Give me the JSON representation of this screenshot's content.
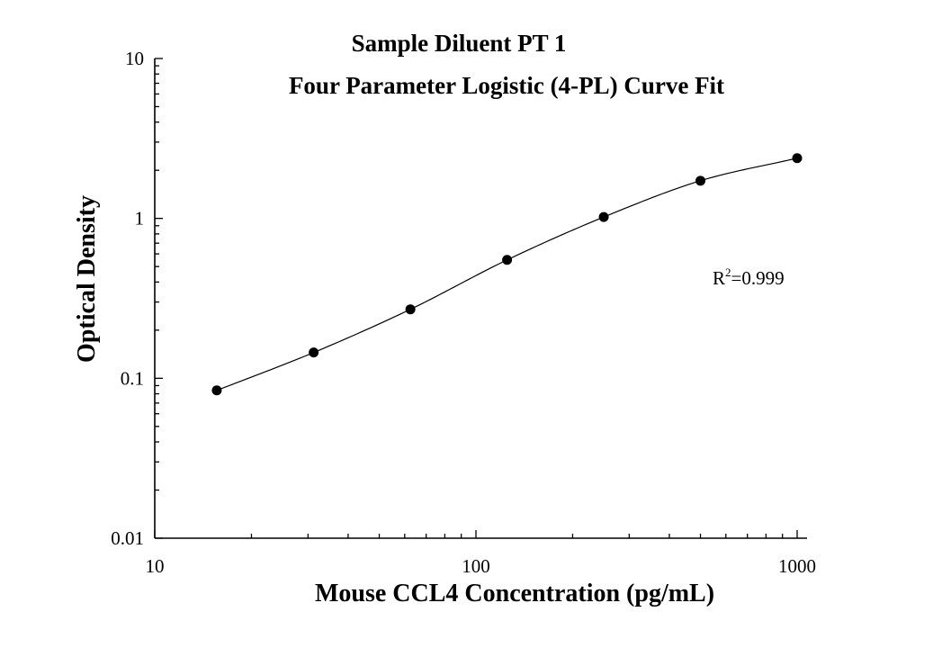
{
  "chart_data": {
    "type": "scatter",
    "title": "Sample Diluent PT 1",
    "subtitle": "Four Parameter Logistic (4-PL) Curve Fit",
    "xlabel": "Mouse CCL4 Concentration (pg/mL)",
    "ylabel": "Optical Density",
    "xscale": "log",
    "yscale": "log",
    "xlim": [
      10,
      1000
    ],
    "ylim": [
      0.01,
      10
    ],
    "x_ticks": [
      "10",
      "100",
      "1000"
    ],
    "y_ticks": [
      "0.01",
      "0.1",
      "1",
      "10"
    ],
    "grid": false,
    "series": [
      {
        "x": [
          15.6,
          31.25,
          62.5,
          125,
          250,
          500,
          1000
        ],
        "y": [
          0.084,
          0.145,
          0.27,
          0.55,
          1.02,
          1.72,
          2.38
        ]
      }
    ],
    "fit": {
      "model": "4PL",
      "r2_label": "R",
      "r2_superscript": "2",
      "r2_value": "=0.999"
    }
  }
}
